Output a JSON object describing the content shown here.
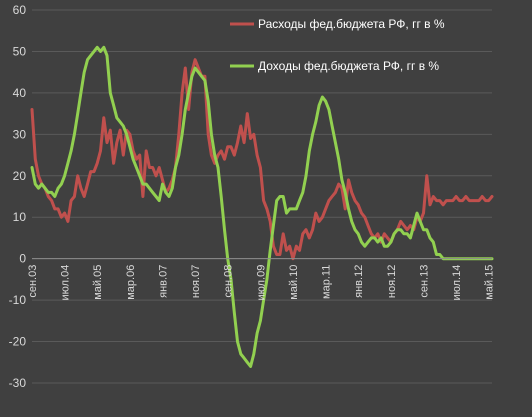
{
  "chart_data": {
    "type": "line",
    "title": "",
    "xlabel": "",
    "ylabel": "",
    "ylim": [
      -30,
      60
    ],
    "yticks": [
      -30,
      -20,
      -10,
      0,
      10,
      20,
      30,
      40,
      50,
      60
    ],
    "x_tick_labels": [
      "сен.03",
      "июл.04",
      "май.05",
      "мар.06",
      "янв.07",
      "ноя.07",
      "сен.08",
      "июл.09",
      "май.10",
      "мар.11",
      "янв.12",
      "ноя.12",
      "сен.13",
      "июл.14",
      "май.15"
    ],
    "x_tick_dates": [
      "2003-09",
      "2004-07",
      "2005-05",
      "2006-03",
      "2007-01",
      "2007-11",
      "2008-09",
      "2009-07",
      "2010-05",
      "2011-03",
      "2012-01",
      "2012-11",
      "2013-09",
      "2014-07",
      "2015-05"
    ],
    "x_range": [
      "2003-09",
      "2015-06"
    ],
    "grid": "horizontal",
    "legend_position": "top-right",
    "series": [
      {
        "name": "Расходы фед.бюджета РФ, гг в %",
        "color": "#c0504d",
        "points": [
          [
            "2003-09",
            36
          ],
          [
            "2003-10",
            24
          ],
          [
            "2003-11",
            20
          ],
          [
            "2003-12",
            18
          ],
          [
            "2004-01",
            17
          ],
          [
            "2004-02",
            15
          ],
          [
            "2004-03",
            14
          ],
          [
            "2004-04",
            12
          ],
          [
            "2004-05",
            12
          ],
          [
            "2004-06",
            10
          ],
          [
            "2004-07",
            11
          ],
          [
            "2004-08",
            9
          ],
          [
            "2004-09",
            14
          ],
          [
            "2004-10",
            15
          ],
          [
            "2004-11",
            20
          ],
          [
            "2004-12",
            17
          ],
          [
            "2005-01",
            15
          ],
          [
            "2005-02",
            18
          ],
          [
            "2005-03",
            21
          ],
          [
            "2005-04",
            21
          ],
          [
            "2005-05",
            23
          ],
          [
            "2005-06",
            26
          ],
          [
            "2005-07",
            34
          ],
          [
            "2005-08",
            28
          ],
          [
            "2005-09",
            31
          ],
          [
            "2005-10",
            23
          ],
          [
            "2005-11",
            28
          ],
          [
            "2005-12",
            31
          ],
          [
            "2006-01",
            25
          ],
          [
            "2006-02",
            31
          ],
          [
            "2006-03",
            30
          ],
          [
            "2006-04",
            26
          ],
          [
            "2006-05",
            24
          ],
          [
            "2006-06",
            25
          ],
          [
            "2006-07",
            15
          ],
          [
            "2006-08",
            26
          ],
          [
            "2006-09",
            22
          ],
          [
            "2006-10",
            22
          ],
          [
            "2006-11",
            20
          ],
          [
            "2006-12",
            22
          ],
          [
            "2007-01",
            19
          ],
          [
            "2007-02",
            16
          ],
          [
            "2007-03",
            17
          ],
          [
            "2007-04",
            19
          ],
          [
            "2007-05",
            22
          ],
          [
            "2007-06",
            30
          ],
          [
            "2007-07",
            40
          ],
          [
            "2007-08",
            46
          ],
          [
            "2007-09",
            36
          ],
          [
            "2007-10",
            45
          ],
          [
            "2007-11",
            48
          ],
          [
            "2007-12",
            46
          ],
          [
            "2008-01",
            44
          ],
          [
            "2008-02",
            44
          ],
          [
            "2008-03",
            30
          ],
          [
            "2008-04",
            25
          ],
          [
            "2008-05",
            23
          ],
          [
            "2008-06",
            25
          ],
          [
            "2008-07",
            26
          ],
          [
            "2008-08",
            24
          ],
          [
            "2008-09",
            27
          ],
          [
            "2008-10",
            27
          ],
          [
            "2008-11",
            25
          ],
          [
            "2008-12",
            28
          ],
          [
            "2009-01",
            32
          ],
          [
            "2009-02",
            28
          ],
          [
            "2009-03",
            35
          ],
          [
            "2009-04",
            29
          ],
          [
            "2009-05",
            30
          ],
          [
            "2009-06",
            25
          ],
          [
            "2009-07",
            22
          ],
          [
            "2009-08",
            14
          ],
          [
            "2009-09",
            12
          ],
          [
            "2009-10",
            9
          ],
          [
            "2009-11",
            3
          ],
          [
            "2009-12",
            1
          ],
          [
            "2010-01",
            1
          ],
          [
            "2010-02",
            6
          ],
          [
            "2010-03",
            2
          ],
          [
            "2010-04",
            3
          ],
          [
            "2010-05",
            0
          ],
          [
            "2010-06",
            3
          ],
          [
            "2010-07",
            2
          ],
          [
            "2010-08",
            6
          ],
          [
            "2010-09",
            7
          ],
          [
            "2010-10",
            5
          ],
          [
            "2010-11",
            7
          ],
          [
            "2010-12",
            11
          ],
          [
            "2011-01",
            9
          ],
          [
            "2011-02",
            10
          ],
          [
            "2011-03",
            12
          ],
          [
            "2011-04",
            14
          ],
          [
            "2011-05",
            15
          ],
          [
            "2011-06",
            16
          ],
          [
            "2011-07",
            18
          ],
          [
            "2011-08",
            17
          ],
          [
            "2011-09",
            12
          ],
          [
            "2011-10",
            19
          ],
          [
            "2011-11",
            16
          ],
          [
            "2011-12",
            14
          ],
          [
            "2012-01",
            13
          ],
          [
            "2012-02",
            11
          ],
          [
            "2012-03",
            10
          ],
          [
            "2012-04",
            8
          ],
          [
            "2012-05",
            6
          ],
          [
            "2012-06",
            5
          ],
          [
            "2012-07",
            6
          ],
          [
            "2012-08",
            4
          ],
          [
            "2012-09",
            6
          ],
          [
            "2012-10",
            5
          ],
          [
            "2012-11",
            4
          ],
          [
            "2012-12",
            6
          ],
          [
            "2013-01",
            7
          ],
          [
            "2013-02",
            9
          ],
          [
            "2013-03",
            8
          ],
          [
            "2013-04",
            7
          ],
          [
            "2013-05",
            8
          ],
          [
            "2013-06",
            7
          ],
          [
            "2013-07",
            10
          ],
          [
            "2013-08",
            9
          ],
          [
            "2013-09",
            11
          ],
          [
            "2013-10",
            20
          ],
          [
            "2013-11",
            13
          ],
          [
            "2013-12",
            15
          ],
          [
            "2014-01",
            14
          ],
          [
            "2014-02",
            14
          ],
          [
            "2014-03",
            13
          ],
          [
            "2014-04",
            14
          ],
          [
            "2014-05",
            14
          ],
          [
            "2014-06",
            14
          ],
          [
            "2014-07",
            15
          ],
          [
            "2014-08",
            14
          ],
          [
            "2014-09",
            14
          ],
          [
            "2014-10",
            15
          ],
          [
            "2014-11",
            14
          ],
          [
            "2014-12",
            14
          ],
          [
            "2015-01",
            14
          ],
          [
            "2015-02",
            14
          ],
          [
            "2015-03",
            15
          ],
          [
            "2015-04",
            14
          ],
          [
            "2015-05",
            14
          ],
          [
            "2015-06",
            15
          ]
        ]
      },
      {
        "name": "Доходы фед.бюджета РФ, гг в %",
        "color": "#92d050",
        "points": [
          [
            "2003-09",
            22
          ],
          [
            "2003-10",
            18
          ],
          [
            "2003-11",
            17
          ],
          [
            "2003-12",
            18
          ],
          [
            "2004-01",
            17
          ],
          [
            "2004-02",
            16
          ],
          [
            "2004-03",
            16
          ],
          [
            "2004-04",
            15
          ],
          [
            "2004-05",
            17
          ],
          [
            "2004-06",
            18
          ],
          [
            "2004-07",
            20
          ],
          [
            "2004-08",
            23
          ],
          [
            "2004-09",
            26
          ],
          [
            "2004-10",
            30
          ],
          [
            "2004-11",
            35
          ],
          [
            "2004-12",
            40
          ],
          [
            "2005-01",
            45
          ],
          [
            "2005-02",
            48
          ],
          [
            "2005-03",
            49
          ],
          [
            "2005-04",
            50
          ],
          [
            "2005-05",
            51
          ],
          [
            "2005-06",
            50
          ],
          [
            "2005-07",
            51
          ],
          [
            "2005-08",
            49
          ],
          [
            "2005-09",
            40
          ],
          [
            "2005-10",
            37
          ],
          [
            "2005-11",
            34
          ],
          [
            "2005-12",
            33
          ],
          [
            "2006-01",
            32
          ],
          [
            "2006-02",
            30
          ],
          [
            "2006-03",
            27
          ],
          [
            "2006-04",
            24
          ],
          [
            "2006-05",
            22
          ],
          [
            "2006-06",
            20
          ],
          [
            "2006-07",
            18
          ],
          [
            "2006-08",
            18
          ],
          [
            "2006-09",
            17
          ],
          [
            "2006-10",
            16
          ],
          [
            "2006-11",
            15
          ],
          [
            "2006-12",
            14
          ],
          [
            "2007-01",
            18
          ],
          [
            "2007-02",
            16
          ],
          [
            "2007-03",
            15
          ],
          [
            "2007-04",
            17
          ],
          [
            "2007-05",
            22
          ],
          [
            "2007-06",
            25
          ],
          [
            "2007-07",
            30
          ],
          [
            "2007-08",
            36
          ],
          [
            "2007-09",
            40
          ],
          [
            "2007-10",
            44
          ],
          [
            "2007-11",
            46
          ],
          [
            "2007-12",
            45
          ],
          [
            "2008-01",
            44
          ],
          [
            "2008-02",
            43
          ],
          [
            "2008-03",
            38
          ],
          [
            "2008-04",
            30
          ],
          [
            "2008-05",
            25
          ],
          [
            "2008-06",
            22
          ],
          [
            "2008-07",
            15
          ],
          [
            "2008-08",
            7
          ],
          [
            "2008-09",
            0
          ],
          [
            "2008-10",
            -5
          ],
          [
            "2008-11",
            -13
          ],
          [
            "2008-12",
            -20
          ],
          [
            "2009-01",
            -23
          ],
          [
            "2009-02",
            -24
          ],
          [
            "2009-03",
            -25
          ],
          [
            "2009-04",
            -26
          ],
          [
            "2009-05",
            -23
          ],
          [
            "2009-06",
            -18
          ],
          [
            "2009-07",
            -15
          ],
          [
            "2009-08",
            -10
          ],
          [
            "2009-09",
            -5
          ],
          [
            "2009-10",
            2
          ],
          [
            "2009-11",
            8
          ],
          [
            "2009-12",
            14
          ],
          [
            "2010-01",
            15
          ],
          [
            "2010-02",
            15
          ],
          [
            "2010-03",
            11
          ],
          [
            "2010-04",
            12
          ],
          [
            "2010-05",
            12
          ],
          [
            "2010-06",
            12
          ],
          [
            "2010-07",
            14
          ],
          [
            "2010-08",
            16
          ],
          [
            "2010-09",
            20
          ],
          [
            "2010-10",
            26
          ],
          [
            "2010-11",
            30
          ],
          [
            "2010-12",
            33
          ],
          [
            "2011-01",
            37
          ],
          [
            "2011-02",
            39
          ],
          [
            "2011-03",
            38
          ],
          [
            "2011-04",
            36
          ],
          [
            "2011-05",
            32
          ],
          [
            "2011-06",
            28
          ],
          [
            "2011-07",
            24
          ],
          [
            "2011-08",
            19
          ],
          [
            "2011-09",
            16
          ],
          [
            "2011-10",
            12
          ],
          [
            "2011-11",
            9
          ],
          [
            "2011-12",
            7
          ],
          [
            "2012-01",
            6
          ],
          [
            "2012-02",
            4
          ],
          [
            "2012-03",
            3
          ],
          [
            "2012-04",
            4
          ],
          [
            "2012-05",
            5
          ],
          [
            "2012-06",
            5
          ],
          [
            "2012-07",
            4
          ],
          [
            "2012-08",
            5
          ],
          [
            "2012-09",
            3
          ],
          [
            "2012-10",
            3
          ],
          [
            "2012-11",
            4
          ],
          [
            "2012-12",
            6
          ],
          [
            "2013-01",
            7
          ],
          [
            "2013-02",
            7
          ],
          [
            "2013-03",
            6
          ],
          [
            "2013-04",
            6
          ],
          [
            "2013-05",
            5
          ],
          [
            "2013-06",
            8
          ],
          [
            "2013-07",
            11
          ],
          [
            "2013-08",
            9
          ],
          [
            "2013-09",
            7
          ],
          [
            "2013-10",
            7
          ],
          [
            "2013-11",
            5
          ],
          [
            "2013-12",
            4
          ],
          [
            "2014-01",
            1
          ],
          [
            "2014-02",
            1
          ],
          [
            "2014-03",
            0
          ],
          [
            "2014-04",
            0
          ],
          [
            "2014-05",
            0
          ],
          [
            "2014-06",
            0
          ],
          [
            "2014-07",
            0
          ],
          [
            "2014-08",
            0
          ],
          [
            "2014-09",
            0
          ],
          [
            "2014-10",
            0
          ],
          [
            "2014-11",
            0
          ],
          [
            "2014-12",
            0
          ],
          [
            "2015-01",
            0
          ],
          [
            "2015-02",
            0
          ],
          [
            "2015-03",
            0
          ],
          [
            "2015-04",
            0
          ],
          [
            "2015-05",
            0
          ],
          [
            "2015-06",
            0
          ]
        ]
      }
    ]
  }
}
